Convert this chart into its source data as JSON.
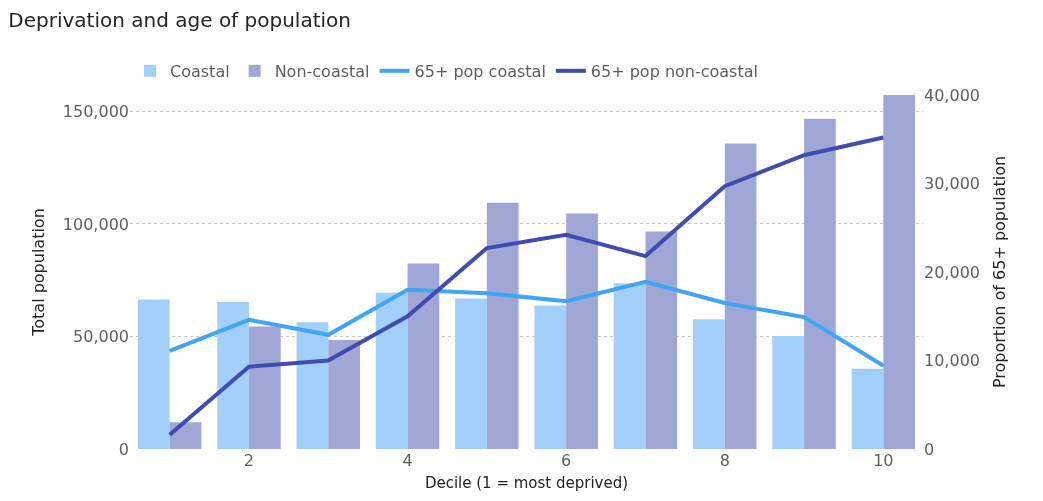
{
  "chart_data": {
    "type": "bar",
    "title": "Deprivation and age of population",
    "xlabel": "Decile (1 = most deprived)",
    "ylabel": "Total population",
    "y2label": "Proportion of 65+ population",
    "x": [
      1,
      2,
      3,
      4,
      5,
      6,
      7,
      8,
      9,
      10
    ],
    "series": [
      {
        "name": "Coastal",
        "color": "#a3d0fb",
        "values": [
          66400,
          65300,
          56300,
          69400,
          66900,
          63800,
          73600,
          57600,
          50200,
          35700
        ]
      },
      {
        "name": "Non-coastal",
        "color": "#a0a6d6",
        "values": [
          11900,
          54400,
          48400,
          82400,
          109400,
          104700,
          96600,
          135700,
          146700,
          157300
        ]
      },
      {
        "name": "65+ pop coastal",
        "type": "line",
        "axis": "y2",
        "color": "#41a5f7",
        "values": [
          11100,
          14600,
          12900,
          18000,
          17600,
          16700,
          18900,
          16500,
          14900,
          9400
        ]
      },
      {
        "name": "65+ pop non-coastal",
        "type": "line",
        "axis": "y2",
        "color": "#3f4db1",
        "values": [
          1600,
          9300,
          10000,
          15000,
          22700,
          24200,
          21800,
          29700,
          33200,
          35200
        ]
      }
    ],
    "xlim": [
      0.5,
      10.5
    ],
    "xticks": [
      2,
      4,
      6,
      8,
      10
    ],
    "ylim": [
      0,
      157300
    ],
    "yticks": [
      {
        "value": 0,
        "label": "0"
      },
      {
        "value": 50000,
        "label": "50,000"
      },
      {
        "value": 100000,
        "label": "100,000"
      },
      {
        "value": 150000,
        "label": "150,000"
      }
    ],
    "y2lim": [
      0,
      40000
    ],
    "y2ticks": [
      {
        "value": 0,
        "label": "0"
      },
      {
        "value": 10000,
        "label": "10,000"
      },
      {
        "value": 20000,
        "label": "20,000"
      },
      {
        "value": 30000,
        "label": "30,000"
      },
      {
        "value": 40000,
        "label": "40,000"
      }
    ],
    "grid": "y",
    "legend": "top left",
    "marker": "none",
    "line_style": "solid"
  }
}
